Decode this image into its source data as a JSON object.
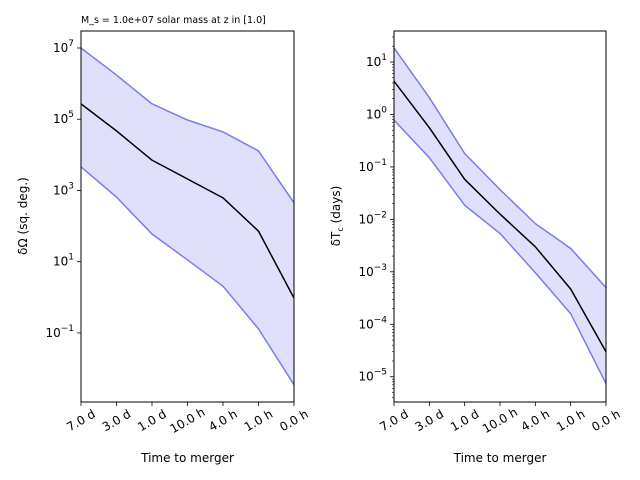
{
  "chart_data": [
    {
      "type": "line",
      "title": "M_s = 1.0e+07 solar mass at z in [1.0]",
      "xlabel": "Time to merger",
      "ylabel": "δΩ (sq. deg.)",
      "yscale": "log",
      "categories": [
        "7.0 d",
        "3.0 d",
        "1.0 d",
        "10.0 h",
        "4.0 h",
        "1.0 h",
        "0.0 h"
      ],
      "ylim": [
        0.00115,
        30000000
      ],
      "yticks": [
        {
          "value": 10000000,
          "base": "10",
          "exp": "7"
        },
        {
          "value": 100000,
          "base": "10",
          "exp": "5"
        },
        {
          "value": 1000,
          "base": "10",
          "exp": "3"
        },
        {
          "value": 10,
          "base": "10",
          "exp": "1"
        },
        {
          "value": 0.1,
          "base": "10",
          "exp": "−1"
        }
      ],
      "series": [
        {
          "name": "upper",
          "color": "#7b7bf0",
          "values": [
            10000000,
            1740000,
            270000,
            95000,
            44000,
            12900,
            450
          ]
        },
        {
          "name": "median",
          "color": "#000000",
          "values": [
            270000,
            47000,
            7100,
            2100,
            620,
            72,
            0.95
          ]
        },
        {
          "name": "lower",
          "color": "#7b7bf0",
          "values": [
            4600,
            650,
            60,
            11.2,
            2.05,
            0.13,
            0.0035
          ]
        }
      ],
      "fill_color": "#e0e0fc"
    },
    {
      "type": "line",
      "title": "",
      "xlabel": "Time to merger",
      "ylabel": "δT",
      "ylabel_sub": "c",
      "ylabel_suffix": " (days)",
      "yscale": "log",
      "categories": [
        "7.0 d",
        "3.0 d",
        "1.0 d",
        "10.0 h",
        "4.0 h",
        "1.0 h",
        "0.0 h"
      ],
      "ylim": [
        3.3e-06,
        39
      ],
      "yticks": [
        {
          "value": 10,
          "base": "10",
          "exp": "1"
        },
        {
          "value": 1,
          "base": "10",
          "exp": "0"
        },
        {
          "value": 0.1,
          "base": "10",
          "exp": "−1"
        },
        {
          "value": 0.01,
          "base": "10",
          "exp": "−2"
        },
        {
          "value": 0.001,
          "base": "10",
          "exp": "−3"
        },
        {
          "value": 0.0001,
          "base": "10",
          "exp": "−4"
        },
        {
          "value": 1e-05,
          "base": "10",
          "exp": "−5"
        }
      ],
      "series": [
        {
          "name": "upper",
          "color": "#7b7bf0",
          "values": [
            18.5,
            2.1,
            0.18,
            0.037,
            0.0083,
            0.0028,
            0.0005
          ]
        },
        {
          "name": "median",
          "color": "#000000",
          "values": [
            4.3,
            0.56,
            0.058,
            0.0126,
            0.003,
            0.00047,
            3e-05
          ]
        },
        {
          "name": "lower",
          "color": "#7b7bf0",
          "values": [
            0.78,
            0.15,
            0.0186,
            0.0054,
            0.00096,
            0.00016,
            7.4e-06
          ]
        }
      ],
      "fill_color": "#e0e0fc"
    }
  ]
}
